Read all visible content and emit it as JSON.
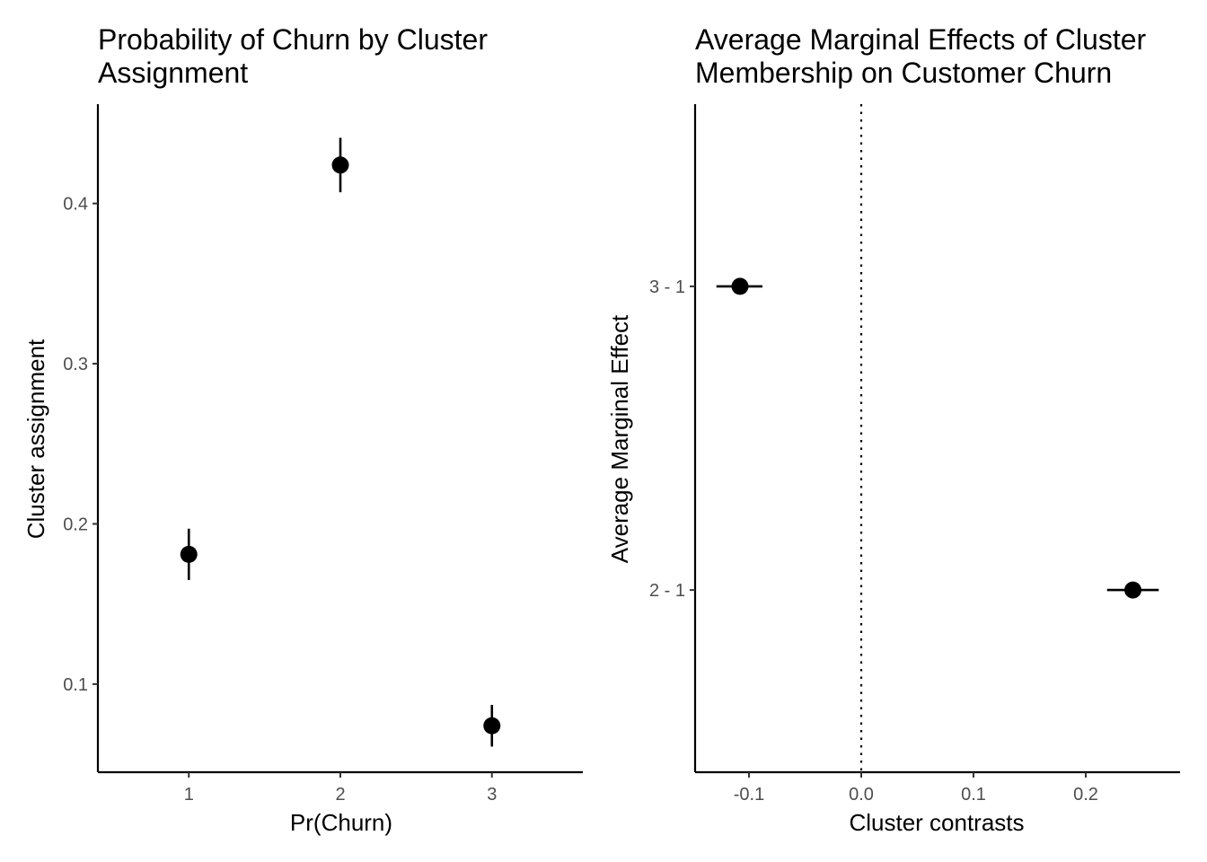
{
  "chart_data": [
    {
      "type": "scatter",
      "title_lines": [
        "Probability of Churn by Cluster",
        "Assignment"
      ],
      "xlabel": "Pr(Churn)",
      "ylabel": "Cluster assignment",
      "x_ticks": [
        "1",
        "2",
        "3"
      ],
      "y_ticks": [
        0.1,
        0.2,
        0.3,
        0.4
      ],
      "y_tick_labels": [
        "0.1",
        "0.2",
        "0.3",
        "0.4"
      ],
      "xlim": [
        0.4,
        3.6
      ],
      "ylim": [
        0.045,
        0.462
      ],
      "grid": false,
      "points": [
        {
          "x": "1",
          "y": 0.181,
          "lower": 0.165,
          "upper": 0.197
        },
        {
          "x": "2",
          "y": 0.424,
          "lower": 0.407,
          "upper": 0.441
        },
        {
          "x": "3",
          "y": 0.074,
          "lower": 0.061,
          "upper": 0.087
        }
      ],
      "error_bar_orientation": "vertical"
    },
    {
      "type": "scatter",
      "title_lines": [
        "Average Marginal Effects of Cluster",
        "Membership on Customer Churn"
      ],
      "xlabel": "Cluster contrasts",
      "ylabel": "Average Marginal Effect",
      "x_ticks": [
        -0.1,
        0.0,
        0.1,
        0.2
      ],
      "x_tick_labels": [
        "-0.1",
        "0.0",
        "0.1",
        "0.2"
      ],
      "y_categories": [
        "2 - 1",
        "3 - 1"
      ],
      "xlim": [
        -0.148,
        0.284
      ],
      "ylim": [
        0.4,
        2.6
      ],
      "grid": false,
      "reference_line": {
        "x": 0.0,
        "style": "dotted"
      },
      "points": [
        {
          "y": "3 - 1",
          "x": -0.108,
          "lower": -0.129,
          "upper": -0.088
        },
        {
          "y": "2 - 1",
          "x": 0.242,
          "lower": 0.219,
          "upper": 0.265
        }
      ],
      "error_bar_orientation": "horizontal"
    }
  ]
}
